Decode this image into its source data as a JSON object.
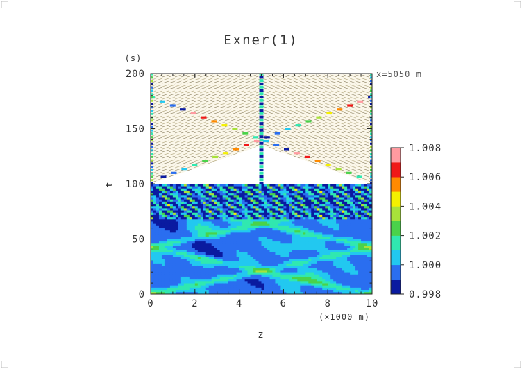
{
  "chart_data": {
    "type": "heatmap",
    "title": "Exner(1)",
    "xlabel": "z",
    "x_unit": "(×1000 m)",
    "ylabel": "t",
    "y_unit": "(s)",
    "annotation": "x=5050 m",
    "xlim": [
      0,
      10
    ],
    "ylim": [
      0,
      200
    ],
    "x_ticks": [
      "0",
      "2",
      "4",
      "6",
      "8",
      "10"
    ],
    "y_ticks": [
      "0",
      "50",
      "100",
      "150",
      "200"
    ],
    "colorbar": {
      "levels": [
        0.998,
        1.0,
        1.002,
        1.004,
        1.006,
        1.008
      ],
      "labels": [
        "0.998",
        "1.000",
        "1.002",
        "1.004",
        "1.006",
        "1.008"
      ],
      "colors": [
        "#0a1aa0",
        "#2a6ef0",
        "#22c8f0",
        "#30e8b0",
        "#4ad24a",
        "#a8e23a",
        "#f4f000",
        "#ff8a00",
        "#f01818",
        "#ff9aa0"
      ]
    }
  }
}
